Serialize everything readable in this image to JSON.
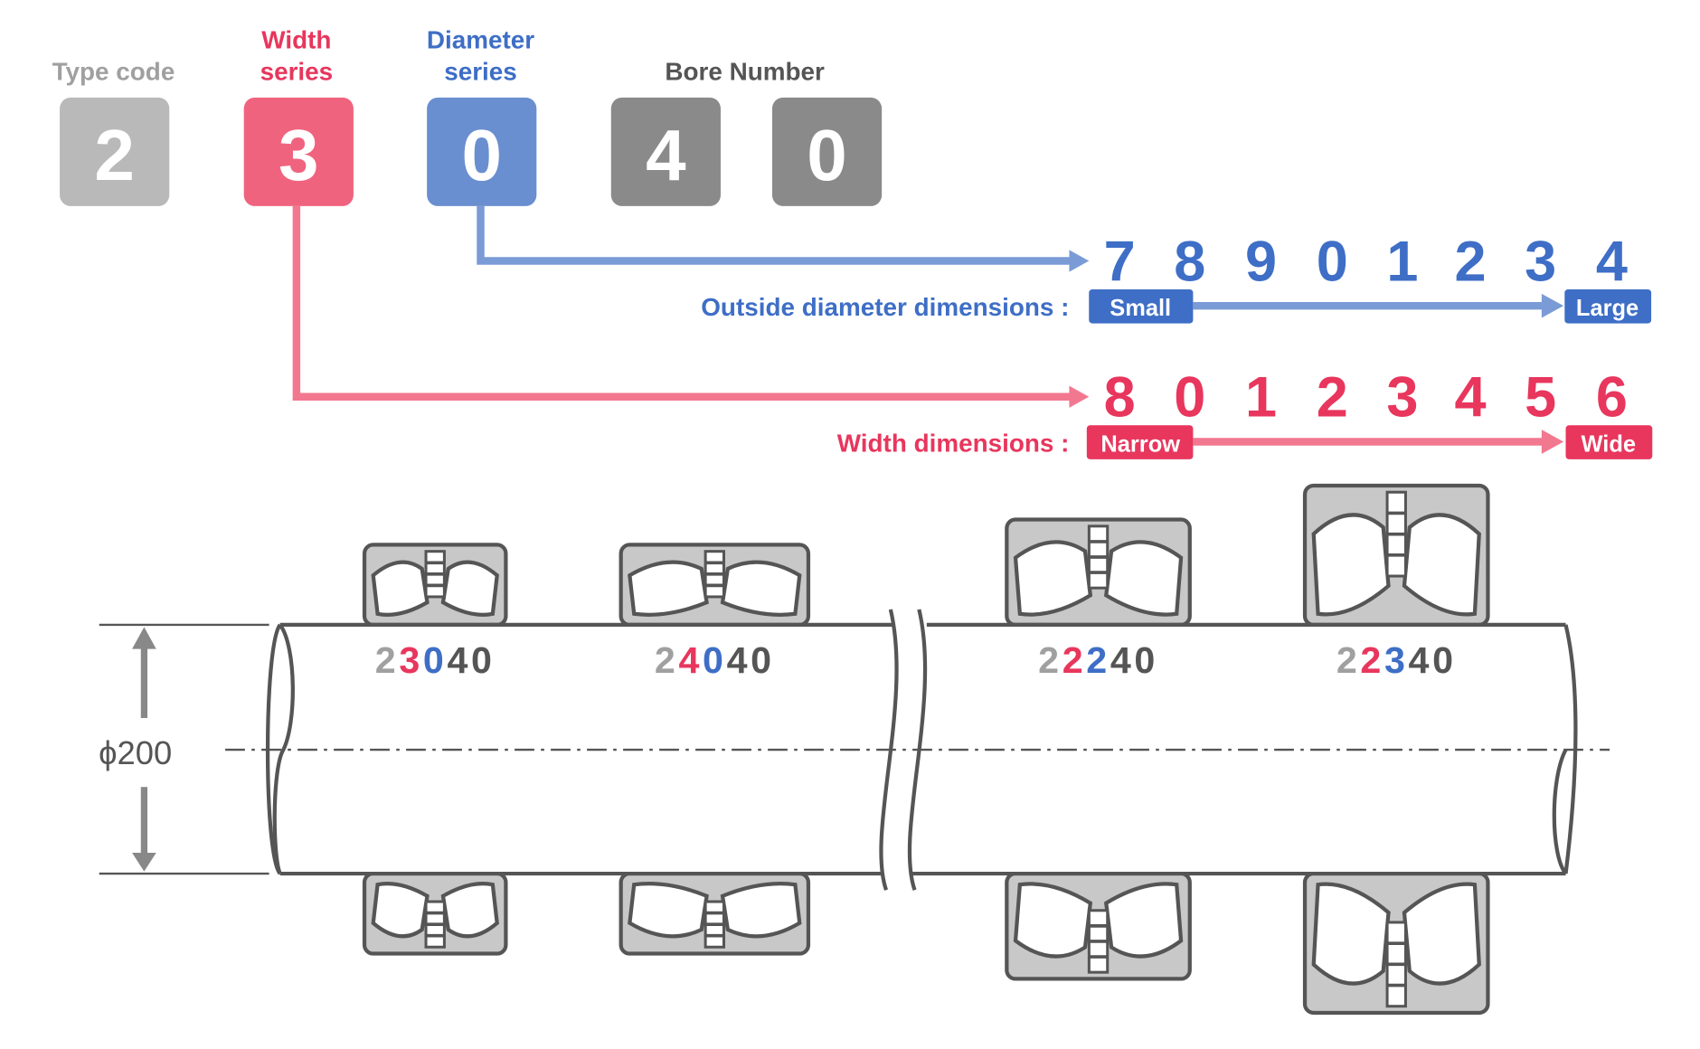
{
  "header": {
    "type_code": {
      "label": "Type code",
      "digit": "2"
    },
    "width_series": {
      "label_line1": "Width",
      "label_line2": "series",
      "digit": "3"
    },
    "diameter_series": {
      "label_line1": "Diameter",
      "label_line2": "series",
      "digit": "0"
    },
    "bore_number": {
      "label": "Bore Number",
      "digits": [
        "4",
        "0"
      ]
    }
  },
  "diameter_scale": {
    "numbers": [
      "7",
      "8",
      "9",
      "0",
      "1",
      "2",
      "3",
      "4"
    ],
    "label": "Outside diameter dimensions :",
    "small": "Small",
    "large": "Large"
  },
  "width_scale": {
    "numbers": [
      "8",
      "0",
      "1",
      "2",
      "3",
      "4",
      "5",
      "6"
    ],
    "label": "Width dimensions :",
    "narrow": "Narrow",
    "wide": "Wide"
  },
  "shaft": {
    "diameter_label": "ϕ200"
  },
  "bearings": [
    {
      "code": [
        "2",
        "3",
        "0",
        "40"
      ]
    },
    {
      "code": [
        "2",
        "4",
        "0",
        "40"
      ]
    },
    {
      "code": [
        "2",
        "2",
        "2",
        "40"
      ]
    },
    {
      "code": [
        "2",
        "2",
        "3",
        "40"
      ]
    }
  ],
  "colors": {
    "type_gray": "#b9b9b9",
    "width_red": "#e8365d",
    "width_box": "#f0637e",
    "diameter_blue": "#3e6ec6",
    "diameter_box": "#6a8fd0",
    "bore_gray": "#8a8a8a",
    "outline": "#555555",
    "housing": "#c8c8c8"
  }
}
